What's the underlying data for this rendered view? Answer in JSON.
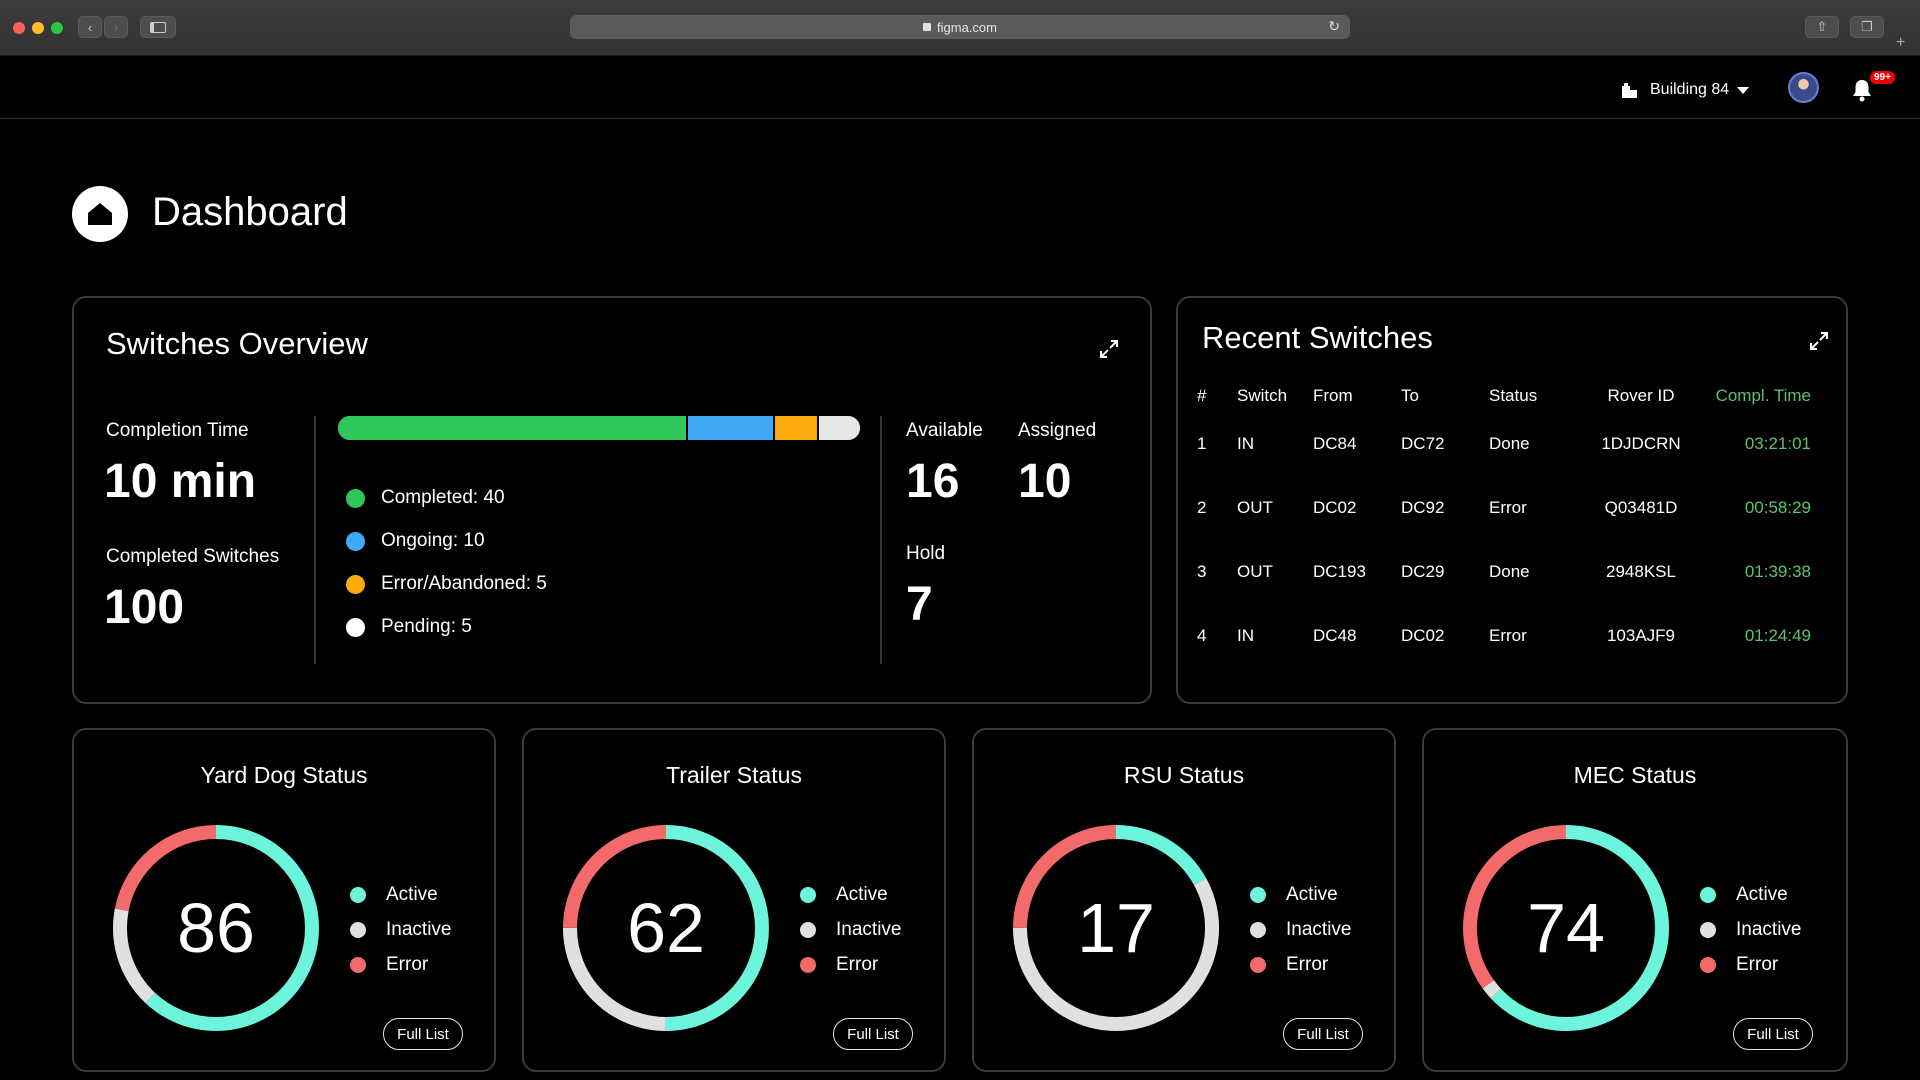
{
  "browser": {
    "url": "figma.com"
  },
  "header": {
    "building": "Building 84",
    "notifications_badge": "99+"
  },
  "page": {
    "title": "Dashboard"
  },
  "colors": {
    "completed": "#2ec85a",
    "ongoing": "#3fa9f5",
    "error_abandoned": "#fbab0e",
    "pending": "#e6e6e6",
    "active": "#6df4dd",
    "inactive": "#e0e0e0",
    "error": "#f26a6a",
    "time": "#5ec26a"
  },
  "overview": {
    "title": "Switches Overview",
    "completion_time_label": "Completion Time",
    "completion_time_value": "10 min",
    "completed_switches_label": "Completed Switches",
    "completed_switches_value": "100",
    "progress": {
      "completed": 40,
      "ongoing": 10,
      "error_abandoned": 5,
      "pending": 5
    },
    "legend": [
      "Completed: 40",
      "Ongoing: 10",
      "Error/Abandoned: 5",
      "Pending: 5"
    ],
    "available_label": "Available",
    "available_value": "16",
    "assigned_label": "Assigned",
    "assigned_value": "10",
    "hold_label": "Hold",
    "hold_value": "7"
  },
  "recent": {
    "title": "Recent Switches",
    "columns": [
      "#",
      "Switch",
      "From",
      "To",
      "Status",
      "Rover ID",
      "Compl. Time"
    ],
    "rows": [
      [
        "1",
        "IN",
        "DC84",
        "DC72",
        "Done",
        "1DJDCRN",
        "03:21:01"
      ],
      [
        "2",
        "OUT",
        "DC02",
        "DC92",
        "Error",
        "Q03481D",
        "00:58:29"
      ],
      [
        "3",
        "OUT",
        "DC193",
        "DC29",
        "Done",
        "2948KSL",
        "01:39:38"
      ],
      [
        "4",
        "IN",
        "DC48",
        "DC02",
        "Error",
        "103AJF9",
        "01:24:49"
      ]
    ]
  },
  "status_cards": [
    {
      "title": "Yard Dog Status",
      "value": "86",
      "legend": [
        "Active",
        "Inactive",
        "Error"
      ],
      "button": "Full List",
      "ring": {
        "active": 0.62,
        "inactive": 0.16,
        "error": 0.22
      }
    },
    {
      "title": "Trailer Status",
      "value": "62",
      "legend": [
        "Active",
        "Inactive",
        "Error"
      ],
      "button": "Full List",
      "ring": {
        "active": 0.5,
        "inactive": 0.25,
        "error": 0.25
      }
    },
    {
      "title": "RSU Status",
      "value": "17",
      "legend": [
        "Active",
        "Inactive",
        "Error"
      ],
      "button": "Full List",
      "ring": {
        "active": 0.17,
        "inactive": 0.58,
        "error": 0.25
      }
    },
    {
      "title": "MEC Status",
      "value": "74",
      "legend": [
        "Active",
        "Inactive",
        "Error"
      ],
      "button": "Full List",
      "ring": {
        "active": 0.63,
        "inactive": 0.02,
        "error": 0.35
      }
    }
  ]
}
